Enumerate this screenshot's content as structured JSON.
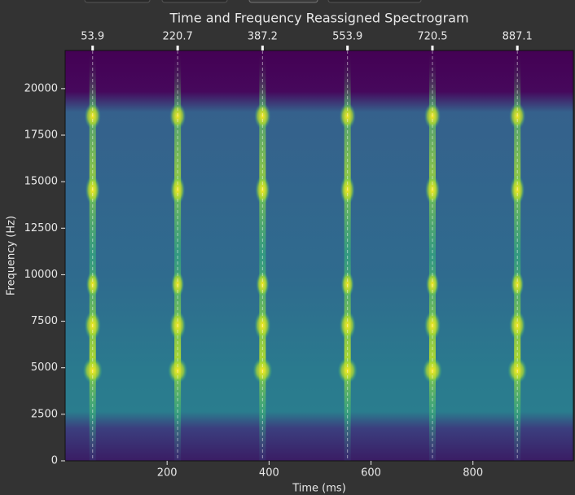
{
  "chart_data": {
    "type": "spectrogram",
    "title": "Time and Frequency Reassigned Spectrogram",
    "xlabel": "Time (ms)",
    "ylabel": "Frequency (Hz)",
    "xlim": [
      0,
      997
    ],
    "ylim": [
      0,
      22050
    ],
    "xticks": [
      200,
      400,
      600,
      800
    ],
    "yticks": [
      0,
      2500,
      5000,
      7500,
      10000,
      12500,
      15000,
      17500,
      20000
    ],
    "onsets": [
      53.9,
      220.7,
      387.2,
      553.9,
      720.5,
      887.1
    ],
    "colormap": "viridis"
  }
}
